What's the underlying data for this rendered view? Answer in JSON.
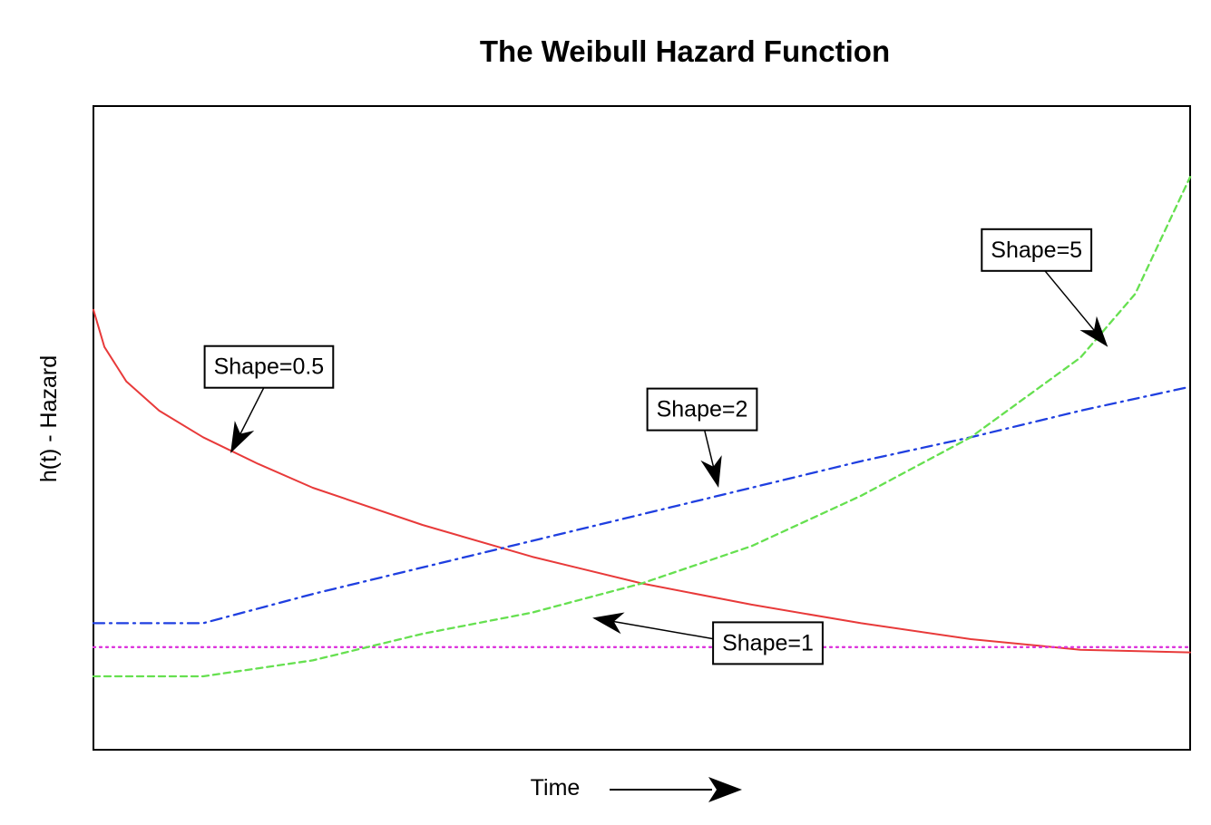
{
  "chart_data": {
    "type": "line",
    "title": "The Weibull Hazard Function",
    "xlabel": "Time",
    "ylabel": "h(t) - Hazard",
    "xlim": [
      0,
      1
    ],
    "ylim": [
      0,
      1
    ],
    "grid": false,
    "x_ticks": false,
    "y_ticks": false,
    "series": [
      {
        "key": "shape-0-5",
        "color": "#e83a3a",
        "dash": "solid",
        "x": [
          0.0,
          0.01,
          0.03,
          0.06,
          0.1,
          0.15,
          0.2,
          0.3,
          0.4,
          0.5,
          0.6,
          0.7,
          0.8,
          0.9,
          1.0
        ],
        "y": [
          0.69,
          0.62,
          0.555,
          0.5,
          0.45,
          0.4,
          0.355,
          0.285,
          0.225,
          0.175,
          0.135,
          0.1,
          0.07,
          0.05,
          0.045
        ]
      },
      {
        "key": "shape-1",
        "color": "#dd33dd",
        "dash": "dotted",
        "x": [
          0.0,
          1.0
        ],
        "y": [
          0.055,
          0.055
        ]
      },
      {
        "key": "shape-2",
        "color": "#1f3fe0",
        "dash": "dashdot",
        "x": [
          0.0,
          0.1,
          0.2,
          0.3,
          0.4,
          0.5,
          0.6,
          0.7,
          0.8,
          0.9,
          1.0
        ],
        "y": [
          0.1,
          0.1,
          0.155,
          0.205,
          0.255,
          0.305,
          0.355,
          0.405,
          0.45,
          0.5,
          0.545
        ]
      },
      {
        "key": "shape-5",
        "color": "#66e050",
        "dash": "dashed",
        "x": [
          0.0,
          0.1,
          0.2,
          0.3,
          0.4,
          0.5,
          0.6,
          0.7,
          0.8,
          0.9,
          0.95,
          1.0
        ],
        "y": [
          0.0,
          0.0,
          0.03,
          0.08,
          0.12,
          0.175,
          0.245,
          0.34,
          0.45,
          0.6,
          0.72,
          0.94
        ]
      }
    ],
    "annotations": [
      {
        "key": "shape-0-5",
        "text": "Shape=0.5",
        "text_at": [
          0.16,
          0.58
        ],
        "arrow_tip": [
          0.125,
          0.42
        ]
      },
      {
        "key": "shape-2",
        "text": "Shape=2",
        "text_at": [
          0.555,
          0.5
        ],
        "arrow_tip": [
          0.57,
          0.355
        ]
      },
      {
        "key": "shape-5",
        "text": "Shape=5",
        "text_at": [
          0.86,
          0.8
        ],
        "arrow_tip": [
          0.925,
          0.62
        ]
      },
      {
        "key": "shape-1",
        "text": "Shape=1",
        "text_at": [
          0.615,
          0.06
        ],
        "arrow_tip": [
          0.455,
          0.11
        ]
      }
    ],
    "colors": {
      "axes_frame": "#000000",
      "background": "#ffffff"
    },
    "time_arrow": "right"
  }
}
